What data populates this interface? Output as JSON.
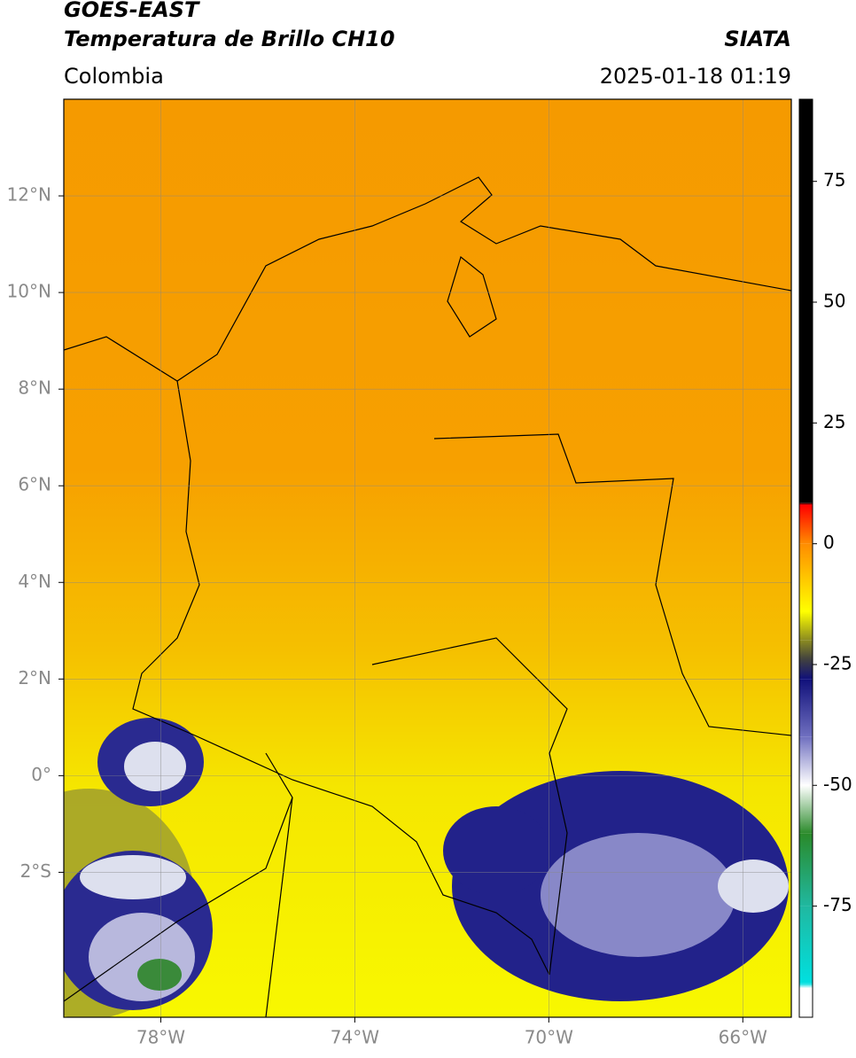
{
  "header": {
    "title": "GOES-EAST",
    "subtitle": "Temperatura de Brillo CH10",
    "source": "SIATA",
    "region": "Colombia",
    "datetime": "2025-01-18 01:19"
  },
  "map": {
    "xlim": [
      -80,
      -65
    ],
    "ylim": [
      -5,
      14
    ],
    "xticks": [
      {
        "value": -78,
        "label": "78°W"
      },
      {
        "value": -74,
        "label": "74°W"
      },
      {
        "value": -70,
        "label": "70°W"
      },
      {
        "value": -66,
        "label": "66°W"
      }
    ],
    "yticks": [
      {
        "value": 12,
        "label": "12°N"
      },
      {
        "value": 10,
        "label": "10°N"
      },
      {
        "value": 8,
        "label": "8°N"
      },
      {
        "value": 6,
        "label": "6°N"
      },
      {
        "value": 4,
        "label": "4°N"
      },
      {
        "value": 2,
        "label": "2°N"
      },
      {
        "value": 0,
        "label": "0°"
      },
      {
        "value": -2,
        "label": "2°S"
      }
    ],
    "grid": true
  },
  "colorbar": {
    "clim": [
      -98,
      92
    ],
    "ticks": [
      75,
      50,
      25,
      0,
      -25,
      -50,
      -75
    ],
    "stops": [
      {
        "value": 92,
        "color": "#000000"
      },
      {
        "value": 8.5,
        "color": "#000000"
      },
      {
        "value": 8,
        "color": "#ff0000"
      },
      {
        "value": 0,
        "color": "#ff8c00"
      },
      {
        "value": -14,
        "color": "#ffff00"
      },
      {
        "value": -20,
        "color": "#8a8a20"
      },
      {
        "value": -24,
        "color": "#404040"
      },
      {
        "value": -28,
        "color": "#10107a"
      },
      {
        "value": -40,
        "color": "#7070c0"
      },
      {
        "value": -50,
        "color": "#ffffff"
      },
      {
        "value": -60,
        "color": "#2a8a2a"
      },
      {
        "value": -75,
        "color": "#20b8a0"
      },
      {
        "value": -91,
        "color": "#00e0e0"
      },
      {
        "value": -92,
        "color": "#ffffff"
      },
      {
        "value": -98,
        "color": "#ffffff"
      }
    ]
  }
}
